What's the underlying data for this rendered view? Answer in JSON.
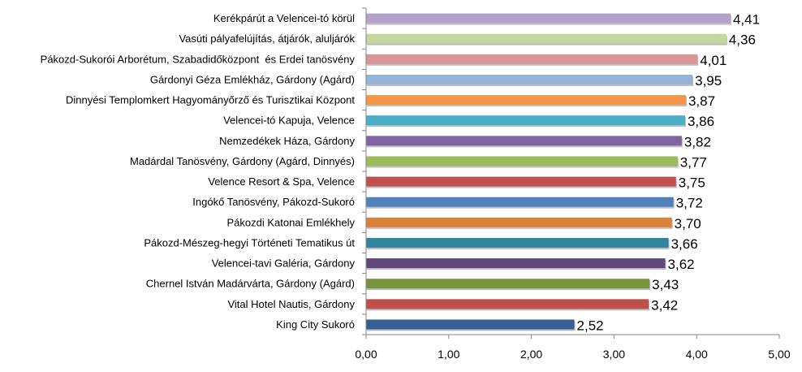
{
  "chart_data": {
    "type": "bar",
    "orientation": "horizontal",
    "categories": [
      "Kerékpárút a Velencei-tó körül",
      "Vasúti pályafelújítás, átjárók, aluljárók",
      "Pákozd-Sukorói Arborétum, Szabadidőközpont  és Erdei tanösvény",
      "Gárdonyi Géza Emlékház, Gárdony (Agárd)",
      "Dinnyési Templomkert Hagyományőrző és Turisztikai Központ",
      "Velencei-tó Kapuja, Velence",
      "Nemzedékek Háza, Gárdony",
      "Madárdal Tanösvény, Gárdony (Agárd, Dinnyés)",
      "Velence Resort & Spa, Velence",
      "Ingókő Tanösvény, Pákozd-Sukoró",
      "Pákozdi Katonai Emlékhely",
      "Pákozd-Mészeg-hegyi Történeti Tematikus út",
      "Velencei-tavi Galéria, Gárdony",
      "Chernel István Madárvárta, Gárdony (Agárd)",
      "Vital Hotel Nautis, Gárdony",
      "King City Sukoró"
    ],
    "values": [
      4.41,
      4.36,
      4.01,
      3.95,
      3.87,
      3.86,
      3.82,
      3.77,
      3.75,
      3.72,
      3.7,
      3.66,
      3.62,
      3.43,
      3.42,
      2.52
    ],
    "value_labels": [
      "4,41",
      "4,36",
      "4,01",
      "3,95",
      "3,87",
      "3,86",
      "3,82",
      "3,77",
      "3,75",
      "3,72",
      "3,70",
      "3,66",
      "3,62",
      "3,43",
      "3,42",
      "2,52"
    ],
    "colors": [
      "#b3a2c7",
      "#c3d69b",
      "#d99694",
      "#95b3d7",
      "#f79646",
      "#4bacc6",
      "#8064a2",
      "#9bbb59",
      "#c0504d",
      "#4f81bd",
      "#d9823b",
      "#31859c",
      "#5f497a",
      "#77933c",
      "#c0504d",
      "#376092"
    ],
    "xticks": [
      "0,00",
      "1,00",
      "2,00",
      "3,00",
      "4,00",
      "5,00"
    ],
    "xlim": [
      0,
      5
    ],
    "grid": false,
    "title": "",
    "xlabel": "",
    "ylabel": ""
  }
}
